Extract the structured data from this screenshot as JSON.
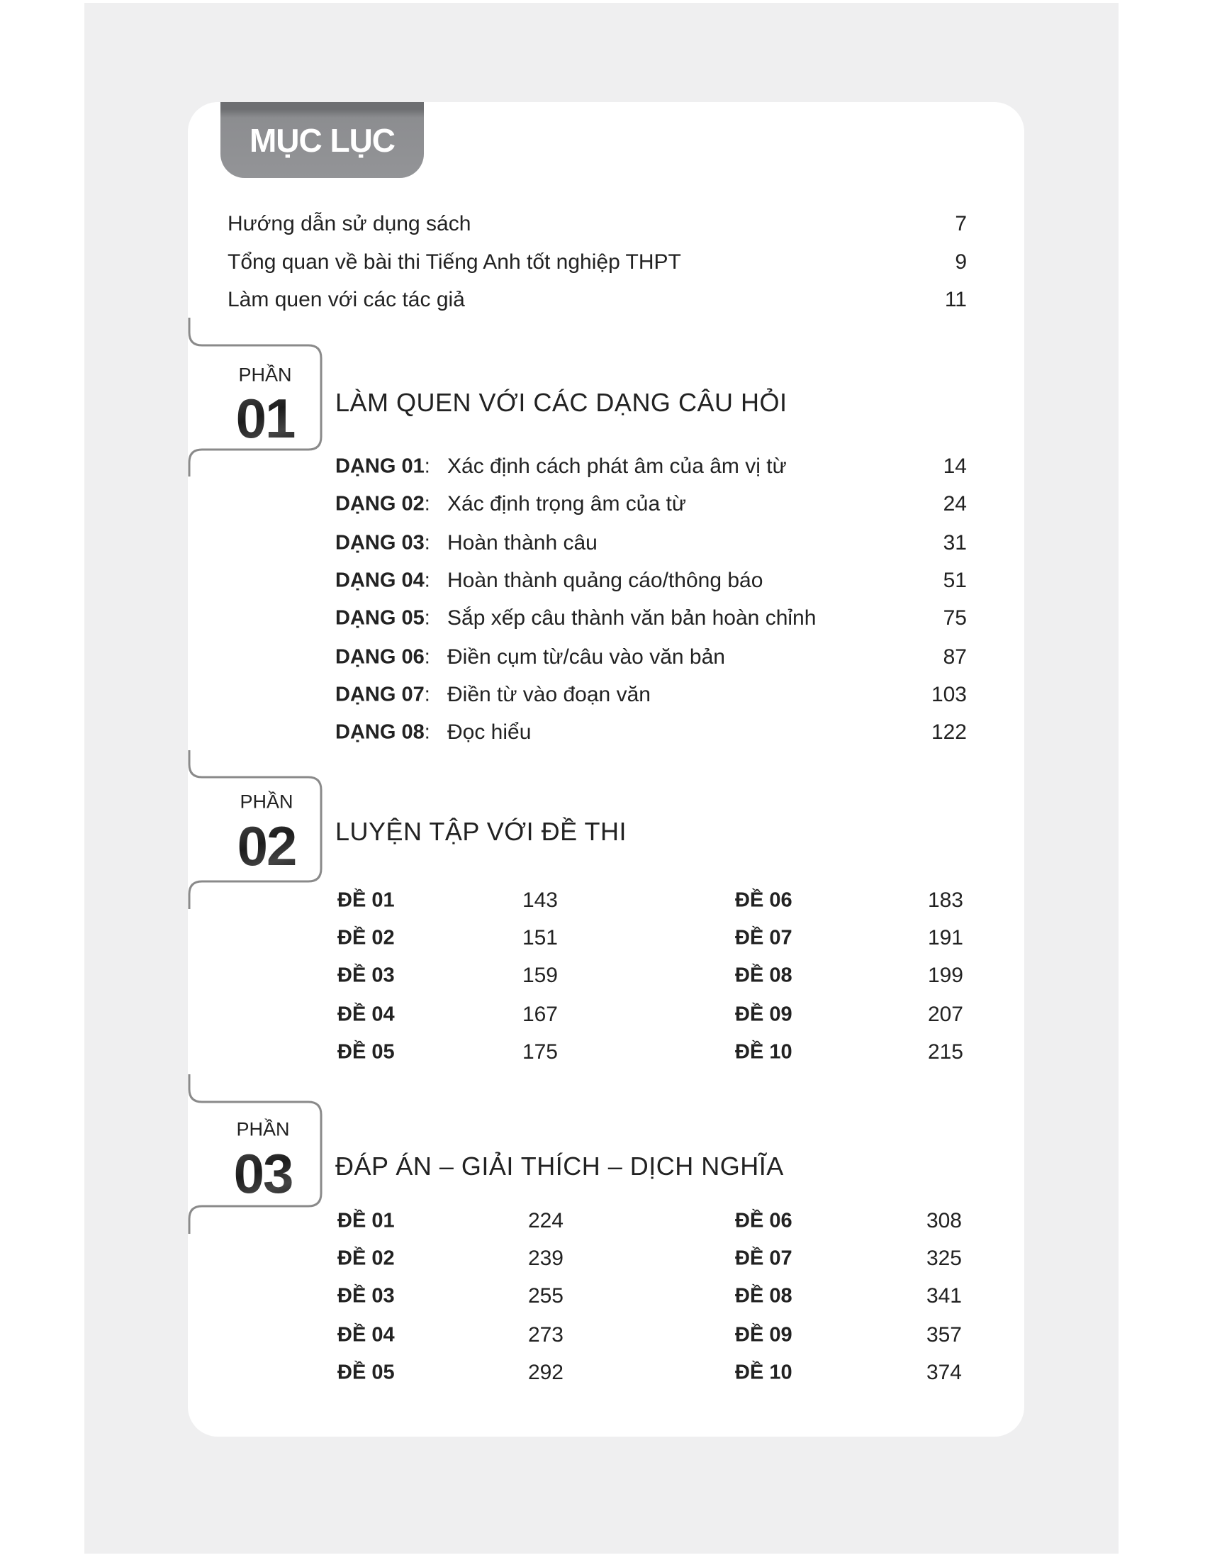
{
  "header": {
    "title": "MỤC LỤC"
  },
  "intro": [
    {
      "label": "Hướng dẫn sử dụng sách",
      "page": "7"
    },
    {
      "label": "Tổng quan về bài thi Tiếng Anh tốt nghiệp THPT",
      "page": "9"
    },
    {
      "label": "Làm quen với các tác giả",
      "page": "11"
    }
  ],
  "parts": [
    {
      "part_label": "PHẦN",
      "number": "01",
      "title": "LÀM QUEN VỚI CÁC DẠNG CÂU HỎI",
      "items": [
        {
          "label": "DẠNG 01",
          "sep": ":",
          "desc": "Xác định cách phát âm của âm vị từ",
          "page": "14"
        },
        {
          "label": "DẠNG 02",
          "sep": ":",
          "desc": "Xác định trọng âm của từ",
          "page": "24"
        },
        {
          "label": "DẠNG 03",
          "sep": ":",
          "desc": "Hoàn thành câu",
          "page": "31"
        },
        {
          "label": "DẠNG 04",
          "sep": ":",
          "desc": "Hoàn thành quảng cáo/thông báo",
          "page": "51"
        },
        {
          "label": "DẠNG 05",
          "sep": ":",
          "desc": "Sắp xếp câu thành văn bản hoàn chỉnh",
          "page": "75"
        },
        {
          "label": "DẠNG 06",
          "sep": ":",
          "desc": "Điền cụm từ/câu vào văn bản",
          "page": "87"
        },
        {
          "label": "DẠNG 07",
          "sep": ":",
          "desc": "Điền từ vào đoạn văn",
          "page": "103"
        },
        {
          "label": "DẠNG 08",
          "sep": ":",
          "desc": "Đọc hiểu",
          "page": "122"
        }
      ]
    },
    {
      "part_label": "PHẦN",
      "number": "02",
      "title": "LUYỆN TẬP VỚI ĐỀ THI",
      "left": [
        {
          "label": "ĐỀ 01",
          "page": "143"
        },
        {
          "label": "ĐỀ 02",
          "page": "151"
        },
        {
          "label": "ĐỀ 03",
          "page": "159"
        },
        {
          "label": "ĐỀ 04",
          "page": "167"
        },
        {
          "label": "ĐỀ 05",
          "page": "175"
        }
      ],
      "right": [
        {
          "label": "ĐỀ 06",
          "page": "183"
        },
        {
          "label": "ĐỀ 07",
          "page": "191"
        },
        {
          "label": "ĐỀ 08",
          "page": "199"
        },
        {
          "label": "ĐỀ 09",
          "page": "207"
        },
        {
          "label": "ĐỀ 10",
          "page": "215"
        }
      ]
    },
    {
      "part_label": "PHẦN",
      "number": "03",
      "title": "ĐÁP ÁN – GIẢI THÍCH – DỊCH NGHĨA",
      "left": [
        {
          "label": "ĐỀ 01",
          "page": "224"
        },
        {
          "label": "ĐỀ 02",
          "page": "239"
        },
        {
          "label": "ĐỀ 03",
          "page": "255"
        },
        {
          "label": "ĐỀ 04",
          "page": "273"
        },
        {
          "label": "ĐỀ 05",
          "page": "292"
        }
      ],
      "right": [
        {
          "label": "ĐỀ 06",
          "page": "308"
        },
        {
          "label": "ĐỀ 07",
          "page": "325"
        },
        {
          "label": "ĐỀ 08",
          "page": "341"
        },
        {
          "label": "ĐỀ 09",
          "page": "357"
        },
        {
          "label": "ĐỀ 10",
          "page": "374"
        }
      ]
    }
  ],
  "colors": {
    "tab": "#939497",
    "bracket": "#8a8a8a",
    "page_bg": "#efeff0"
  }
}
